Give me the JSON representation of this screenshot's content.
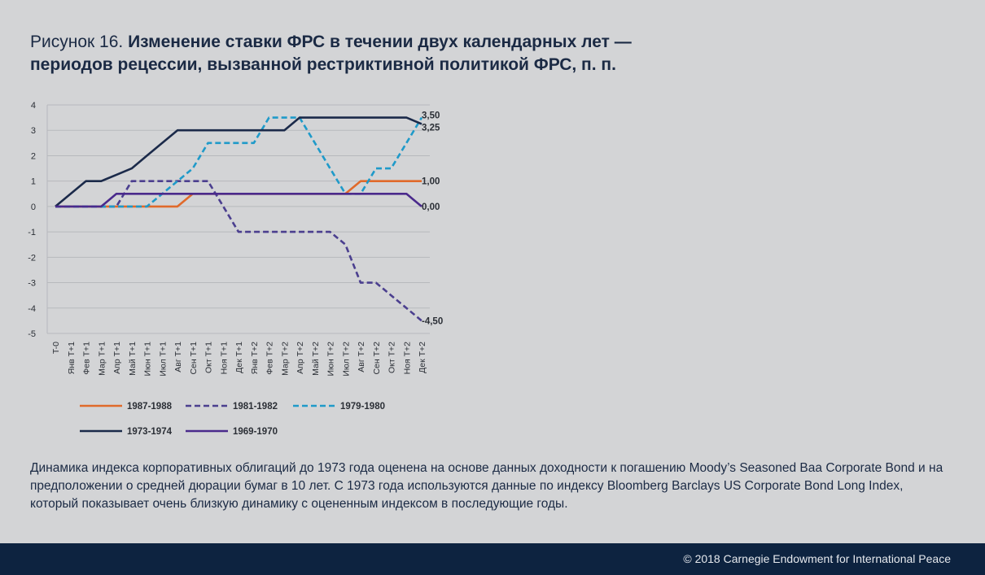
{
  "title": {
    "label": "Рисунок 16.",
    "line1": "Изменение ставки ФРС  в течении двух календарных лет —",
    "line2": "периодов рецессии, вызванной рестриктивной политикой ФРС, п. п."
  },
  "chart_data": {
    "type": "line",
    "title": "",
    "xlabel": "",
    "ylabel": "",
    "ylim": [
      -5,
      4
    ],
    "yticks": [
      4,
      3,
      2,
      1,
      0,
      -1,
      -2,
      -3,
      -4,
      -5
    ],
    "grid": "horizontal",
    "legend_position": "bottom",
    "categories": [
      "T-0",
      "Янв T+1",
      "Фев T+1",
      "Мар T+1",
      "Апр T+1",
      "Май T+1",
      "Июн T+1",
      "Июл T+1",
      "Авг T+1",
      "Сен T+1",
      "Окт T+1",
      "Ноя T+1",
      "Дек T+1",
      "Янв T+2",
      "Фев T+2",
      "Мар T+2",
      "Апр T+2",
      "Май T+2",
      "Июн T+2",
      "Июл T+2",
      "Авг T+2",
      "Сен T+2",
      "Окт T+2",
      "Ноя T+2",
      "Дек T+2"
    ],
    "series": [
      {
        "name": "1987-1988",
        "color": "#e06a2b",
        "dash": "solid",
        "values": [
          0,
          0,
          0,
          0,
          0,
          0,
          0,
          0,
          0,
          0.5,
          0.5,
          0.5,
          0.5,
          0.5,
          0.5,
          0.5,
          0.5,
          0.5,
          0.5,
          0.5,
          1,
          1,
          1,
          1,
          1
        ]
      },
      {
        "name": "1981-1982",
        "color": "#4b3f8f",
        "dash": "dashed",
        "values": [
          0,
          0,
          0,
          0,
          0,
          1,
          1,
          1,
          1,
          1,
          1,
          0,
          -1,
          -1,
          -1,
          -1,
          -1,
          -1,
          -1,
          -1.5,
          -3,
          -3,
          -3.5,
          -4,
          -4.5
        ]
      },
      {
        "name": "1979-1980",
        "color": "#1f9ac9",
        "dash": "dashed",
        "values": [
          0,
          0,
          0,
          0,
          0,
          0,
          0,
          0.5,
          1,
          1.5,
          2.5,
          2.5,
          2.5,
          2.5,
          3.5,
          3.5,
          3.5,
          2.5,
          1.5,
          0.5,
          0.5,
          1.5,
          1.5,
          2.5,
          3.5
        ]
      },
      {
        "name": "1973-1974",
        "color": "#1b2a4a",
        "dash": "solid",
        "values": [
          0,
          0.5,
          1,
          1,
          1.25,
          1.5,
          2,
          2.5,
          3,
          3,
          3,
          3,
          3,
          3,
          3,
          3,
          3.5,
          3.5,
          3.5,
          3.5,
          3.5,
          3.5,
          3.5,
          3.5,
          3.25
        ]
      },
      {
        "name": "1969-1970",
        "color": "#4a2a8c",
        "dash": "solid",
        "values": [
          0,
          0,
          0,
          0,
          0.5,
          0.5,
          0.5,
          0.5,
          0.5,
          0.5,
          0.5,
          0.5,
          0.5,
          0.5,
          0.5,
          0.5,
          0.5,
          0.5,
          0.5,
          0.5,
          0.5,
          0.5,
          0.5,
          0.5,
          0
        ]
      }
    ],
    "end_labels": [
      {
        "text": "3,50",
        "value": 3.5
      },
      {
        "text": "3,25",
        "value": 3.25
      },
      {
        "text": "1,00",
        "value": 1
      },
      {
        "text": "0,00",
        "value": 0
      },
      {
        "text": "-4,50",
        "value": -4.5
      }
    ]
  },
  "note": "Динамика индекса корпоративных облигаций до 1973 года оценена на основе данных доходности к погашению Moody’s Seasoned Baa Corporate Bond и на предположении о средней дюрации бумаг в 10 лет. С 1973 года используются данные по индексу Bloomberg Barclays US Corporate Bond Long Index, который показывает очень близкую динамику с оцененным индексом в последующие годы.",
  "footer": {
    "copyright": "© 2018 Carnegie Endowment for International Peace"
  }
}
